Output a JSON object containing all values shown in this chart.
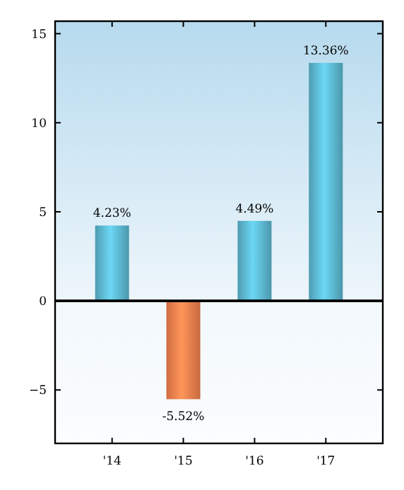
{
  "chart_data": {
    "type": "bar",
    "categories": [
      "'14",
      "'15",
      "'16",
      "'17"
    ],
    "values": [
      4.23,
      -5.52,
      4.49,
      13.36
    ],
    "colors": [
      "#5ab4cc",
      "#ef7d4b",
      "#5ab4cc",
      "#5ab4cc"
    ],
    "value_labels": [
      "4.23%",
      "-5.52%",
      "4.49%",
      "13.36%"
    ],
    "ylim": [
      -8,
      15.7
    ],
    "yticks": [
      {
        "value": -5,
        "label": "−5"
      },
      0,
      5,
      10,
      15
    ]
  }
}
